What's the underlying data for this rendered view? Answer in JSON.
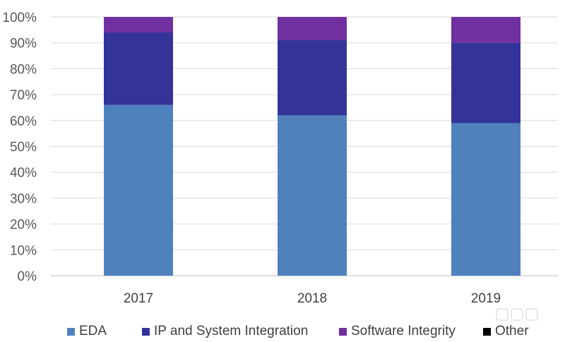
{
  "chart_data": {
    "type": "bar",
    "stacked": true,
    "categories": [
      "2017",
      "2018",
      "2019"
    ],
    "series": [
      {
        "name": "EDA",
        "values": [
          66,
          62,
          59
        ],
        "color": "#4f81bd"
      },
      {
        "name": "IP and System Integration",
        "values": [
          28,
          29,
          31
        ],
        "color": "#333399"
      },
      {
        "name": "Software Integrity",
        "values": [
          6,
          9,
          10
        ],
        "color": "#7030a0"
      },
      {
        "name": "Other",
        "values": [
          0,
          0,
          0
        ],
        "color": "#000000"
      }
    ],
    "title": "",
    "xlabel": "",
    "ylabel": "",
    "ylim": [
      0,
      100
    ],
    "yticks": [
      "0%",
      "10%",
      "20%",
      "30%",
      "40%",
      "50%",
      "60%",
      "70%",
      "80%",
      "90%",
      "100%"
    ],
    "grid": true,
    "legend_position": "bottom"
  }
}
